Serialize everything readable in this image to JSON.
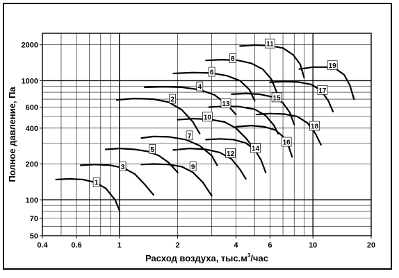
{
  "chart_data": {
    "type": "line",
    "xlabel": "Расход воздуха, тыс.м",
    "xlabel_sup": "3",
    "xlabel_tail": "/час",
    "ylabel": "Полное давление, Па",
    "xscale": "log",
    "yscale": "log",
    "xlim": [
      0.4,
      20
    ],
    "ylim": [
      50,
      2500
    ],
    "xticks": [
      0.4,
      0.6,
      1,
      2,
      4,
      6,
      10,
      20
    ],
    "xtick_labels": [
      "0.4",
      "0.6",
      "1",
      "2",
      "4",
      "6",
      "10",
      "20"
    ],
    "yticks": [
      50,
      70,
      100,
      200,
      400,
      600,
      1000,
      2000
    ],
    "ytick_labels": [
      "50",
      "70",
      "100",
      "200",
      "400",
      "600",
      "1000",
      "2000"
    ],
    "grid": true,
    "series": [
      {
        "name": "1",
        "label_at": [
          0.76,
          140
        ],
        "x": [
          0.47,
          0.55,
          0.65,
          0.75,
          0.85,
          0.95,
          1.0
        ],
        "y": [
          148,
          150,
          148,
          140,
          125,
          100,
          82
        ]
      },
      {
        "name": "3",
        "label_at": [
          1.04,
          190
        ],
        "x": [
          0.63,
          0.75,
          0.9,
          1.05,
          1.2,
          1.35,
          1.5
        ],
        "y": [
          195,
          198,
          195,
          185,
          165,
          135,
          110
        ]
      },
      {
        "name": "5",
        "label_at": [
          1.48,
          265
        ],
        "x": [
          0.85,
          1.0,
          1.2,
          1.4,
          1.6,
          1.8,
          2.0
        ],
        "y": [
          265,
          270,
          265,
          255,
          235,
          205,
          170
        ]
      },
      {
        "name": "9",
        "label_at": [
          2.4,
          190
        ],
        "x": [
          1.3,
          1.5,
          1.8,
          2.1,
          2.4,
          2.7,
          3.0
        ],
        "y": [
          198,
          200,
          198,
          190,
          170,
          140,
          108
        ]
      },
      {
        "name": "7",
        "label_at": [
          2.3,
          345
        ],
        "x": [
          1.3,
          1.5,
          1.8,
          2.2,
          2.6,
          3.0,
          3.2
        ],
        "y": [
          330,
          340,
          338,
          320,
          285,
          235,
          195
        ]
      },
      {
        "name": "12",
        "label_at": [
          3.75,
          245
        ],
        "x": [
          1.9,
          2.3,
          2.8,
          3.3,
          3.8,
          4.2,
          4.5
        ],
        "y": [
          262,
          270,
          265,
          250,
          220,
          180,
          150
        ]
      },
      {
        "name": "2",
        "label_at": [
          1.88,
          700
        ],
        "x": [
          0.97,
          1.2,
          1.5,
          1.8,
          2.1,
          2.4,
          2.6
        ],
        "y": [
          690,
          710,
          700,
          660,
          570,
          450,
          360
        ]
      },
      {
        "name": "10",
        "label_at": [
          2.85,
          495
        ],
        "x": [
          2.0,
          2.4,
          2.9,
          3.5,
          4.0,
          4.5,
          5.0
        ],
        "y": [
          470,
          480,
          475,
          450,
          400,
          330,
          265
        ]
      },
      {
        "name": "14",
        "label_at": [
          5.05,
          270
        ],
        "x": [
          2.8,
          3.3,
          3.9,
          4.5,
          5.0,
          5.4,
          5.7
        ],
        "y": [
          320,
          325,
          320,
          300,
          265,
          215,
          170
        ]
      },
      {
        "name": "4",
        "label_at": [
          2.6,
          890
        ],
        "x": [
          1.35,
          1.7,
          2.1,
          2.6,
          3.1,
          3.6,
          4.0
        ],
        "y": [
          880,
          890,
          880,
          840,
          760,
          630,
          520
        ]
      },
      {
        "name": "13",
        "label_at": [
          3.55,
          640
        ],
        "x": [
          2.9,
          3.5,
          4.2,
          5.0,
          5.7,
          6.3,
          6.6
        ],
        "y": [
          600,
          610,
          605,
          575,
          510,
          420,
          360
        ]
      },
      {
        "name": "16",
        "label_at": [
          7.3,
          305
        ],
        "x": [
          4.0,
          4.8,
          5.6,
          6.4,
          7.0,
          7.5,
          7.8
        ],
        "y": [
          410,
          420,
          410,
          385,
          340,
          280,
          230
        ]
      },
      {
        "name": "6",
        "label_at": [
          3.0,
          1180
        ],
        "x": [
          1.9,
          2.4,
          3.0,
          3.6,
          4.2,
          4.7,
          5.0
        ],
        "y": [
          1150,
          1170,
          1160,
          1100,
          1000,
          840,
          680
        ]
      },
      {
        "name": "15",
        "label_at": [
          6.5,
          720
        ],
        "x": [
          3.8,
          4.5,
          5.3,
          6.2,
          7.0,
          7.6,
          8.0
        ],
        "y": [
          770,
          780,
          770,
          730,
          650,
          540,
          430
        ]
      },
      {
        "name": "18",
        "label_at": [
          10.2,
          415
        ],
        "x": [
          5.1,
          6.0,
          7.1,
          8.3,
          9.4,
          10.3,
          11.0
        ],
        "y": [
          520,
          530,
          525,
          500,
          440,
          360,
          290
        ]
      },
      {
        "name": "8",
        "label_at": [
          3.85,
          1530
        ],
        "x": [
          2.8,
          3.4,
          4.1,
          4.8,
          5.5,
          6.1,
          6.5
        ],
        "y": [
          1480,
          1500,
          1480,
          1400,
          1250,
          1030,
          800
        ]
      },
      {
        "name": "17",
        "label_at": [
          11.2,
          830
        ],
        "x": [
          6.0,
          7.1,
          8.4,
          9.8,
          11.0,
          12.0,
          12.7
        ],
        "y": [
          970,
          985,
          975,
          930,
          830,
          680,
          550
        ]
      },
      {
        "name": "11",
        "label_at": [
          6.0,
          2040
        ],
        "x": [
          4.2,
          5.0,
          6.0,
          7.0,
          7.9,
          8.6,
          9.0
        ],
        "y": [
          1950,
          1990,
          1970,
          1880,
          1650,
          1370,
          1060
        ]
      },
      {
        "name": "19",
        "label_at": [
          12.6,
          1340
        ],
        "x": [
          8.5,
          10.0,
          11.7,
          13.2,
          14.5,
          15.5,
          16.3
        ],
        "y": [
          1250,
          1300,
          1300,
          1250,
          1120,
          920,
          700
        ]
      }
    ]
  }
}
